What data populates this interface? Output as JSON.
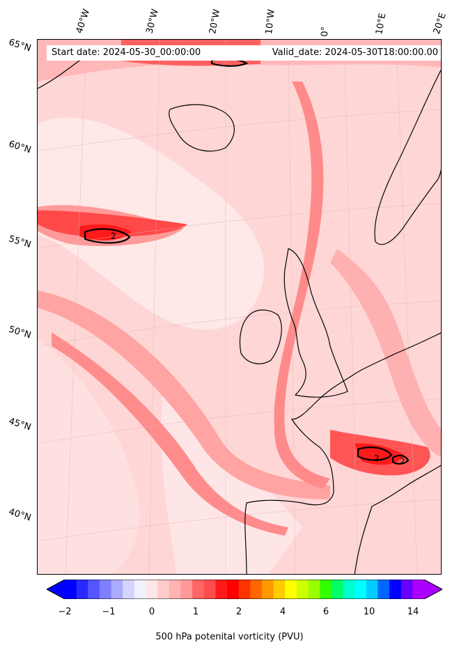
{
  "header": {
    "start_label": "Start date: 2024-05-30_00:00:00",
    "valid_label": "Valid_date: 2024-05-30T18:00:00.00"
  },
  "lon_labels": [
    "40°W",
    "30°W",
    "20°W",
    "10°W",
    "0°",
    "10°E",
    "20°E"
  ],
  "lat_labels": [
    "65°N",
    "60°N",
    "55°N",
    "50°N",
    "45°N",
    "40°N"
  ],
  "contour_labels": [
    "2",
    "2",
    "2"
  ],
  "colorbar": {
    "ticks": [
      "−2",
      "−1",
      "0",
      "1",
      "2",
      "4",
      "6",
      "10",
      "14"
    ],
    "title": "500 hPa potenital vorticity (PVU)",
    "colors": [
      "#0000ff",
      "#2a2aff",
      "#5555ff",
      "#7f7fff",
      "#aaaaff",
      "#d4d4ff",
      "#f0f0ff",
      "#ffe6e6",
      "#ffcccc",
      "#ffb3b3",
      "#ff9999",
      "#ff6666",
      "#ff4d4d",
      "#ff1a1a",
      "#ff0000",
      "#ff3300",
      "#ff6600",
      "#ff9900",
      "#ffcc00",
      "#ffff00",
      "#ccff00",
      "#99ff00",
      "#33ff00",
      "#00ff66",
      "#00ffcc",
      "#00ffff",
      "#00ccff",
      "#0066ff",
      "#0000ff",
      "#6600ff",
      "#aa00ff"
    ]
  },
  "colors": {
    "background_pv": "#ffd6d6",
    "high_pv": "#ff1a1a",
    "coast": "#000000"
  }
}
